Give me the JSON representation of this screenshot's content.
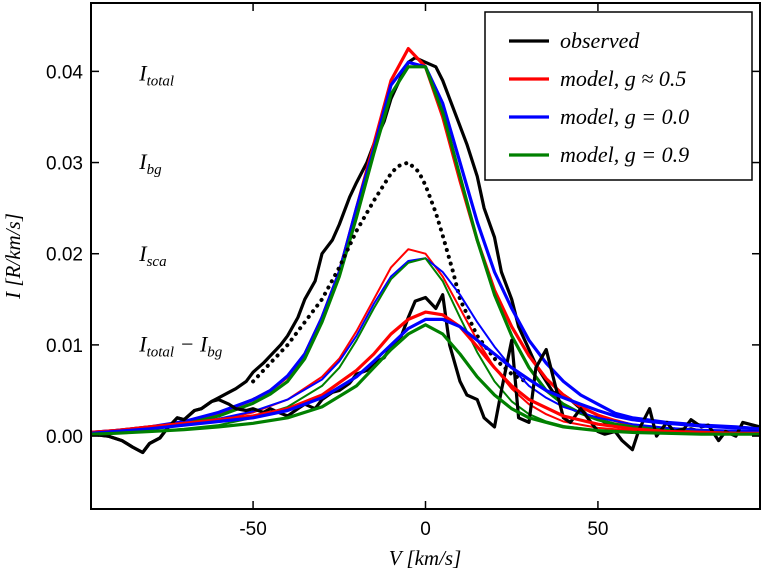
{
  "chart_data": {
    "type": "line",
    "title": "",
    "xlabel": "V [km/s]",
    "ylabel": "I [R/km/s]",
    "xlim": [
      -97,
      97
    ],
    "ylim": [
      -0.008,
      0.0475
    ],
    "xticks": [
      -50,
      0,
      50
    ],
    "xtick_labels": [
      "-50",
      "0",
      "50"
    ],
    "yticks": [
      0.0,
      0.01,
      0.02,
      0.03,
      0.04
    ],
    "ytick_labels": [
      "0.00",
      "0.01",
      "0.02",
      "0.03",
      "0.04"
    ],
    "grid": false,
    "legend_position": "top-right",
    "legend": [
      {
        "label": "observed",
        "color": "#000000"
      },
      {
        "label": "model, g ≈ 0.5",
        "color": "#ff0000"
      },
      {
        "label": "model, g = 0.0",
        "color": "#0000ff"
      },
      {
        "label": "model, g = 0.9",
        "color": "#008000"
      }
    ],
    "annotations": [
      {
        "main": "I",
        "sub": "total",
        "x": -83,
        "y": 0.039
      },
      {
        "main": "I",
        "sub": "bg",
        "x": -83,
        "y": 0.0293
      },
      {
        "main": "I",
        "sub": "sca",
        "x": -83,
        "y": 0.0192
      },
      {
        "main": "I",
        "sub": "total",
        "rest": " − I",
        "sub2": "bg",
        "x": -83,
        "y": 0.0093
      }
    ],
    "series": [
      {
        "name": "observed I_total",
        "group": "total",
        "color": "#000000",
        "width": 3.2,
        "x": [
          -97,
          -92,
          -88,
          -85,
          -82,
          -80,
          -77,
          -75,
          -72,
          -70,
          -67,
          -65,
          -62,
          -60,
          -57,
          -55,
          -52,
          -50,
          -47,
          -45,
          -42,
          -40,
          -37,
          -35,
          -32,
          -30,
          -27,
          -25,
          -22,
          -20,
          -17,
          -15,
          -12,
          -10,
          -7,
          -5,
          -3,
          0,
          3,
          5,
          7,
          10,
          12,
          15,
          17,
          20,
          22,
          25,
          27,
          30,
          32,
          35,
          37,
          40,
          42,
          45,
          47,
          50,
          52,
          55,
          57,
          60,
          62,
          65,
          67,
          70,
          72,
          75,
          77,
          80,
          82,
          85,
          87,
          90,
          92,
          97
        ],
        "y": [
          0.0002,
          0.0,
          -0.0005,
          -0.0012,
          -0.0018,
          -0.0008,
          -0.0002,
          0.0008,
          0.002,
          0.0018,
          0.0028,
          0.003,
          0.0038,
          0.0042,
          0.0048,
          0.0052,
          0.006,
          0.007,
          0.008,
          0.0088,
          0.01,
          0.011,
          0.013,
          0.015,
          0.017,
          0.02,
          0.0215,
          0.0232,
          0.0262,
          0.0278,
          0.03,
          0.032,
          0.0345,
          0.037,
          0.0395,
          0.041,
          0.0415,
          0.041,
          0.0405,
          0.039,
          0.037,
          0.034,
          0.032,
          0.0285,
          0.025,
          0.0218,
          0.018,
          0.015,
          0.012,
          0.0095,
          0.0078,
          0.006,
          0.0048,
          0.0045,
          0.004,
          0.003,
          0.0022,
          0.002,
          0.0015,
          0.0012,
          0.001,
          0.001,
          0.0008,
          0.0007,
          0.0008,
          0.0007,
          0.0008,
          0.0006,
          0.0008,
          0.0005,
          0.0006,
          0.0005,
          0.0003,
          0.0004,
          0.0005,
          0.0005
        ]
      },
      {
        "name": "model, g ≈ 0.5 I_total",
        "group": "total",
        "color": "#ff0000",
        "width": 3.2,
        "x": [
          -97,
          -90,
          -80,
          -70,
          -60,
          -50,
          -45,
          -40,
          -35,
          -30,
          -25,
          -20,
          -15,
          -10,
          -5,
          0,
          5,
          10,
          15,
          20,
          25,
          30,
          35,
          40,
          45,
          50,
          55,
          60,
          70,
          80,
          90,
          97
        ],
        "y": [
          0.0004,
          0.0006,
          0.001,
          0.0015,
          0.0025,
          0.004,
          0.005,
          0.0065,
          0.009,
          0.013,
          0.018,
          0.025,
          0.032,
          0.039,
          0.0425,
          0.0405,
          0.035,
          0.028,
          0.0215,
          0.016,
          0.012,
          0.0088,
          0.0063,
          0.0045,
          0.0032,
          0.0023,
          0.0017,
          0.0012,
          0.0008,
          0.0005,
          0.0004,
          0.0003
        ]
      },
      {
        "name": "model, g = 0.0 I_total",
        "group": "total",
        "color": "#0000ff",
        "width": 3.2,
        "x": [
          -97,
          -90,
          -80,
          -70,
          -60,
          -50,
          -45,
          -40,
          -35,
          -30,
          -25,
          -20,
          -15,
          -10,
          -5,
          0,
          5,
          10,
          15,
          20,
          25,
          30,
          35,
          40,
          45,
          50,
          55,
          60,
          70,
          80,
          90,
          97
        ],
        "y": [
          0.0004,
          0.0006,
          0.001,
          0.0016,
          0.0026,
          0.004,
          0.005,
          0.0066,
          0.009,
          0.013,
          0.018,
          0.025,
          0.0315,
          0.0385,
          0.041,
          0.0405,
          0.0365,
          0.03,
          0.0235,
          0.018,
          0.014,
          0.0105,
          0.008,
          0.006,
          0.0045,
          0.0035,
          0.0025,
          0.002,
          0.0015,
          0.0012,
          0.001,
          0.0008
        ]
      },
      {
        "name": "model, g = 0.9 I_total",
        "group": "total",
        "color": "#008000",
        "width": 3.2,
        "x": [
          -97,
          -90,
          -80,
          -70,
          -60,
          -50,
          -45,
          -40,
          -35,
          -30,
          -25,
          -20,
          -15,
          -10,
          -5,
          0,
          5,
          10,
          15,
          20,
          25,
          30,
          35,
          40,
          45,
          50,
          55,
          60,
          70,
          80,
          90,
          97
        ],
        "y": [
          0.0003,
          0.0005,
          0.0008,
          0.0013,
          0.0022,
          0.0036,
          0.0046,
          0.006,
          0.0085,
          0.0125,
          0.0175,
          0.024,
          0.031,
          0.0375,
          0.0405,
          0.0405,
          0.0355,
          0.0285,
          0.0215,
          0.0155,
          0.011,
          0.0075,
          0.005,
          0.0035,
          0.0025,
          0.0018,
          0.0013,
          0.001,
          0.0007,
          0.0005,
          0.0004,
          0.0003
        ]
      },
      {
        "name": "I_bg",
        "group": "bg",
        "color": "#000000",
        "width": 4,
        "dotted": true,
        "x": [
          -50,
          -45,
          -40,
          -35,
          -30,
          -25,
          -20,
          -15,
          -10,
          -8,
          -5,
          -2,
          0,
          3,
          5,
          8,
          10,
          15,
          20,
          25,
          30
        ],
        "y": [
          0.006,
          0.008,
          0.01,
          0.0125,
          0.015,
          0.0185,
          0.0225,
          0.0258,
          0.0288,
          0.0296,
          0.03,
          0.029,
          0.0275,
          0.0245,
          0.022,
          0.018,
          0.015,
          0.011,
          0.0085,
          0.0068,
          0.0058
        ]
      },
      {
        "name": "model, g ≈ 0.5 I_sca",
        "group": "sca",
        "color": "#ff0000",
        "width": 2,
        "x": [
          -97,
          -90,
          -80,
          -70,
          -60,
          -50,
          -40,
          -30,
          -25,
          -20,
          -15,
          -10,
          -5,
          0,
          5,
          10,
          15,
          20,
          25,
          30,
          35,
          40,
          50,
          60,
          70,
          80,
          90,
          97
        ],
        "y": [
          0.0003,
          0.0005,
          0.0008,
          0.0012,
          0.0018,
          0.0026,
          0.004,
          0.0065,
          0.0085,
          0.0115,
          0.015,
          0.0185,
          0.0205,
          0.02,
          0.0175,
          0.014,
          0.0105,
          0.0075,
          0.0052,
          0.0035,
          0.0024,
          0.0016,
          0.0009,
          0.0006,
          0.0004,
          0.0003,
          0.0003,
          0.0002
        ]
      },
      {
        "name": "model, g = 0.0 I_sca",
        "group": "sca",
        "color": "#0000ff",
        "width": 2,
        "x": [
          -97,
          -90,
          -80,
          -70,
          -60,
          -50,
          -40,
          -30,
          -25,
          -20,
          -15,
          -10,
          -5,
          0,
          5,
          10,
          15,
          20,
          25,
          30,
          35,
          40,
          50,
          60,
          70,
          80,
          90,
          97
        ],
        "y": [
          0.0004,
          0.0006,
          0.0009,
          0.0013,
          0.0019,
          0.0027,
          0.004,
          0.0062,
          0.0082,
          0.011,
          0.0145,
          0.0175,
          0.0192,
          0.0195,
          0.018,
          0.0155,
          0.0125,
          0.0098,
          0.0075,
          0.0055,
          0.0042,
          0.0032,
          0.002,
          0.0013,
          0.0009,
          0.0007,
          0.0006,
          0.0005
        ]
      },
      {
        "name": "model, g = 0.9 I_sca",
        "group": "sca",
        "color": "#008000",
        "width": 2,
        "x": [
          -97,
          -90,
          -80,
          -70,
          -60,
          -50,
          -40,
          -30,
          -25,
          -20,
          -15,
          -10,
          -5,
          0,
          5,
          10,
          15,
          20,
          25,
          30,
          35,
          40,
          50,
          60,
          70,
          80,
          90,
          97
        ],
        "y": [
          0.0002,
          0.0003,
          0.0005,
          0.0008,
          0.0012,
          0.002,
          0.0032,
          0.0055,
          0.0075,
          0.0105,
          0.014,
          0.0172,
          0.019,
          0.0195,
          0.017,
          0.013,
          0.0092,
          0.006,
          0.0038,
          0.0024,
          0.0016,
          0.0011,
          0.0006,
          0.0004,
          0.0003,
          0.0002,
          0.0002,
          0.0002
        ]
      },
      {
        "name": "observed I_total - I_bg",
        "group": "diff",
        "color": "#000000",
        "width": 3.2,
        "x": [
          -97,
          -92,
          -88,
          -85,
          -82,
          -80,
          -77,
          -75,
          -72,
          -70,
          -67,
          -65,
          -62,
          -60,
          -57,
          -55,
          -52,
          -50,
          -47,
          -45,
          -42,
          -40,
          -37,
          -35,
          -32,
          -30,
          -27,
          -25,
          -22,
          -20,
          -17,
          -15,
          -12,
          -10,
          -7,
          -5,
          -3,
          0,
          3,
          5,
          7,
          10,
          12,
          15,
          17,
          20,
          22,
          25,
          27,
          30,
          32,
          35,
          37,
          40,
          42,
          45,
          47,
          50,
          52,
          55,
          57,
          60,
          62,
          65,
          67,
          70,
          72,
          75,
          77,
          80,
          82,
          85,
          87,
          90,
          92,
          97
        ],
        "y": [
          0.0002,
          0.0,
          -0.0005,
          -0.0012,
          -0.0018,
          -0.0008,
          -0.0002,
          0.0008,
          0.002,
          0.0018,
          0.0028,
          0.003,
          0.0038,
          0.004,
          0.0035,
          0.003,
          0.0028,
          0.003,
          0.0026,
          0.003,
          0.0025,
          0.0022,
          0.003,
          0.0035,
          0.003,
          0.004,
          0.0048,
          0.005,
          0.0058,
          0.0068,
          0.0072,
          0.008,
          0.0086,
          0.0098,
          0.011,
          0.013,
          0.0148,
          0.0152,
          0.014,
          0.0155,
          0.01,
          0.006,
          0.0045,
          0.004,
          0.002,
          0.001,
          0.005,
          0.0105,
          0.002,
          0.0015,
          0.0075,
          0.0095,
          0.0065,
          0.002,
          0.0015,
          0.003,
          0.002,
          0.0005,
          0.0002,
          0.0005,
          -0.0005,
          -0.0015,
          0.0008,
          0.003,
          0.0,
          0.0015,
          0.0005,
          0.0008,
          0.0018,
          0.001,
          0.0012,
          -0.0005,
          0.0005,
          0.0,
          0.0015,
          0.001
        ]
      },
      {
        "name": "model, g ≈ 0.5 I_total - I_bg",
        "group": "diff",
        "color": "#ff0000",
        "width": 3.2,
        "x": [
          -97,
          -90,
          -80,
          -70,
          -60,
          -50,
          -40,
          -30,
          -20,
          -15,
          -10,
          -5,
          0,
          5,
          10,
          15,
          20,
          25,
          30,
          40,
          50,
          60,
          70,
          80,
          90,
          97
        ],
        "y": [
          0.0004,
          0.0006,
          0.001,
          0.0014,
          0.0018,
          0.0022,
          0.003,
          0.0045,
          0.0072,
          0.009,
          0.0112,
          0.0128,
          0.0136,
          0.0133,
          0.012,
          0.0098,
          0.0075,
          0.0055,
          0.004,
          0.0022,
          0.0013,
          0.0008,
          0.0005,
          0.0004,
          0.0003,
          0.0003
        ]
      },
      {
        "name": "model, g = 0.0 I_total - I_bg",
        "group": "diff",
        "color": "#0000ff",
        "width": 3.2,
        "x": [
          -97,
          -90,
          -80,
          -70,
          -60,
          -50,
          -40,
          -30,
          -20,
          -15,
          -10,
          -5,
          0,
          5,
          10,
          15,
          20,
          25,
          30,
          35,
          40,
          45,
          50,
          55,
          60,
          70,
          80,
          90,
          97
        ],
        "y": [
          0.0003,
          0.0005,
          0.0008,
          0.0012,
          0.0016,
          0.002,
          0.0028,
          0.0042,
          0.0065,
          0.0082,
          0.01,
          0.0118,
          0.0128,
          0.0128,
          0.012,
          0.0105,
          0.009,
          0.0075,
          0.0062,
          0.005,
          0.0042,
          0.0035,
          0.0028,
          0.0022,
          0.0018,
          0.0014,
          0.0011,
          0.0009,
          0.0008
        ]
      },
      {
        "name": "model, g = 0.9 I_total - I_bg",
        "group": "diff",
        "color": "#008000",
        "width": 3.2,
        "x": [
          -97,
          -90,
          -80,
          -70,
          -60,
          -50,
          -40,
          -30,
          -20,
          -15,
          -10,
          -5,
          0,
          5,
          10,
          15,
          20,
          25,
          30,
          40,
          50,
          60,
          70,
          80,
          90,
          97
        ],
        "y": [
          0.0002,
          0.0003,
          0.0005,
          0.0007,
          0.001,
          0.0014,
          0.002,
          0.0032,
          0.0055,
          0.0075,
          0.0095,
          0.0112,
          0.0122,
          0.0112,
          0.009,
          0.0065,
          0.0045,
          0.003,
          0.002,
          0.001,
          0.0006,
          0.0004,
          0.0003,
          0.0002,
          0.0002,
          0.0002
        ]
      }
    ]
  }
}
